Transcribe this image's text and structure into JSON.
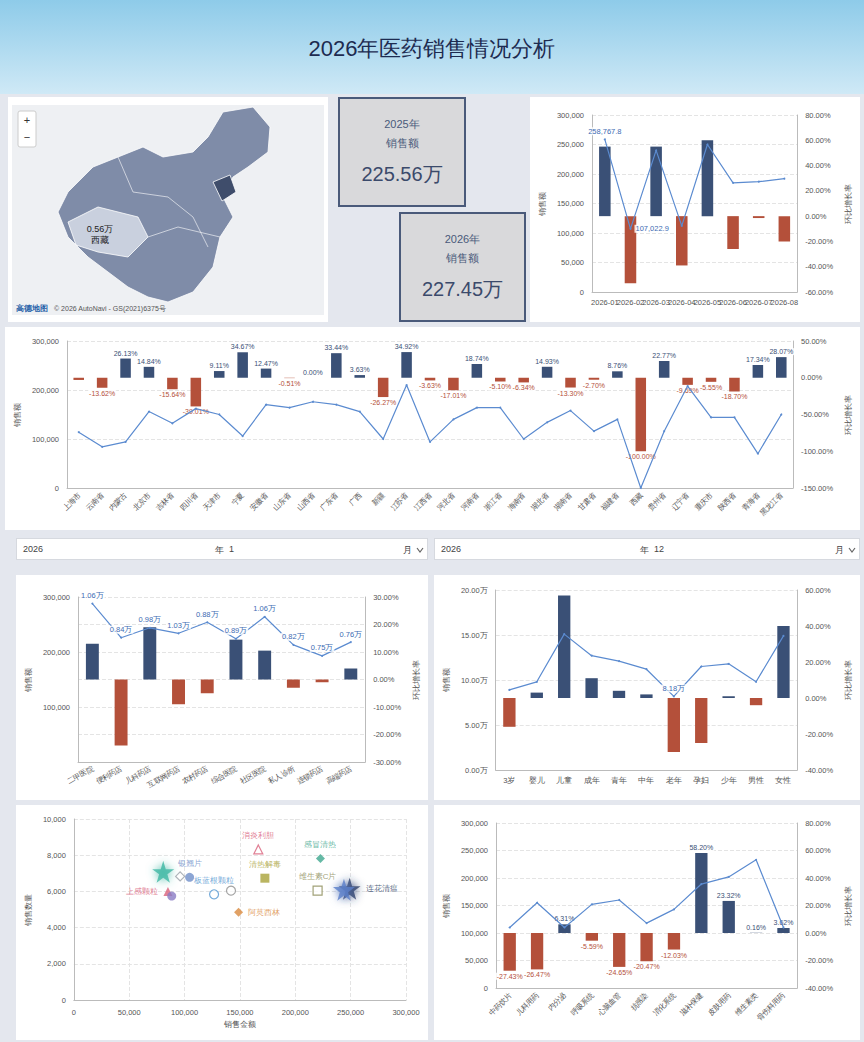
{
  "header": {
    "title": "2026年医药销售情况分析"
  },
  "map": {
    "labels": [
      {
        "value_label": "0.56万",
        "region": "西藏"
      }
    ],
    "controls": [
      "+",
      "−"
    ],
    "attribution": [
      "高德地图",
      "© 2026 AutoNavi - GS(2021)6375号"
    ]
  },
  "kpis": [
    {
      "year": "2025年",
      "label": "销售额",
      "value": "225.56万"
    },
    {
      "year": "2026年",
      "label": "销售额",
      "value": "227.45万"
    }
  ],
  "filters": [
    {
      "year": "2026",
      "year_unit": "年",
      "month": "1",
      "month_unit": "月"
    },
    {
      "year": "2026",
      "year_unit": "年",
      "month": "12",
      "month_unit": "月"
    }
  ],
  "chart_data": [
    {
      "type": "bar",
      "categories": [
        "2026-01",
        "2026-02",
        "2026-03",
        "2026-04",
        "2026-05",
        "2026-06",
        "2026-07",
        "2026-08"
      ],
      "ylabel": "销售额",
      "y2label": "环比增长率",
      "ylim": [
        0,
        300000
      ],
      "yticks": [
        0,
        {
          "value": 50000,
          "label": "50,000"
        },
        {
          "value": 100000,
          "label": "100,000"
        },
        {
          "value": 150000,
          "label": "150,000"
        },
        {
          "value": 200000,
          "label": "200,000"
        },
        {
          "value": 250000,
          "label": "250,000"
        },
        {
          "value": 300000,
          "label": "300,000"
        }
      ],
      "y2lim": [
        -60,
        80
      ],
      "y2ticks": [
        {
          "value": -60,
          "label": "-60.00%"
        },
        {
          "value": -40,
          "label": "-40.00%"
        },
        {
          "value": -20,
          "label": "-20.00%"
        },
        {
          "value": 0,
          "label": "0.00%"
        },
        {
          "value": 20,
          "label": "20.00%"
        },
        {
          "value": 40,
          "label": "40.00%"
        },
        {
          "value": 60,
          "label": "60.00%"
        },
        {
          "value": 80,
          "label": "80.00%"
        }
      ],
      "grid": true,
      "series": [
        {
          "name": "环比增长率",
          "type": "bar",
          "axis": "y2",
          "values": [
            55,
            -53,
            55,
            -39,
            60,
            -26,
            -1.5,
            -20
          ],
          "colors": [
            "#3a5076",
            "#b4503a",
            "#3a5076",
            "#b4503a",
            "#3a5076",
            "#b4503a",
            "#b4503a",
            "#b4503a"
          ]
        },
        {
          "name": "销售额",
          "type": "line",
          "color": "#5b8bd0",
          "data_labels": true,
          "values": [
            258767.8,
            107022.9,
            240000,
            112000,
            250000,
            185000,
            187000,
            192000
          ],
          "value_labels": [
            "258,767.8",
            "107,022.9",
            null,
            null,
            null,
            null,
            null,
            null
          ]
        }
      ]
    },
    {
      "type": "bar",
      "categories": [
        "上海市",
        "云南省",
        "内蒙古",
        "北京市",
        "吉林省",
        "四川省",
        "天津市",
        "宁夏",
        "安徽省",
        "山东省",
        "山西省",
        "广东省",
        "广西",
        "新疆",
        "江苏省",
        "江西省",
        "河北省",
        "河南省",
        "浙江省",
        "海南省",
        "湖北省",
        "湖南省",
        "甘肃省",
        "福建省",
        "西藏",
        "贵州省",
        "辽宁省",
        "重庆市",
        "陕西省",
        "青海省",
        "黑龙江省"
      ],
      "ylabel": "销售额",
      "y2label": "环比增长率",
      "ylim": [
        0,
        300000
      ],
      "yticks": [
        0,
        {
          "value": 100000,
          "label": "100,000"
        },
        {
          "value": 200000,
          "label": "200,000"
        },
        {
          "value": 300000,
          "label": "300,000"
        }
      ],
      "y2lim": [
        -150,
        50
      ],
      "y2ticks": [
        {
          "value": -150,
          "label": "-150.00%"
        },
        {
          "value": -100,
          "label": "-100.00%"
        },
        {
          "value": -50,
          "label": "-50.00%"
        },
        {
          "value": 0,
          "label": "0.00%"
        },
        {
          "value": 50,
          "label": "50.00%"
        }
      ],
      "grid": true,
      "series": [
        {
          "name": "环比增长率",
          "type": "bar",
          "axis": "y2",
          "data_labels": true,
          "values": [
            -3,
            -13.62,
            26.13,
            14.84,
            -15.64,
            -39.01,
            9.11,
            34.67,
            12.47,
            -0.51,
            0,
            33.44,
            3.63,
            -26.27,
            34.92,
            -3.63,
            -17.01,
            18.74,
            -5.1,
            -6.34,
            14.93,
            -13.3,
            -2.7,
            8.76,
            -100,
            22.77,
            -9.69,
            -5.55,
            -18.7,
            17.34,
            28.07
          ],
          "value_labels": [
            null,
            "-13.62%",
            "26.13%",
            "14.84%",
            "-15.64%",
            "-39.01%",
            "9.11%",
            "34.67%",
            "12.47%",
            "-0.51%",
            "0.00%",
            "33.44%",
            "3.63%",
            "-26.27%",
            "34.92%",
            "-3.63%",
            "-17.01%",
            "18.74%",
            "-5.10%",
            "-6.34%",
            "14.93%",
            "-13.30%",
            "-2.70%",
            "8.76%",
            "-100.00%",
            "22.77%",
            "-9.69%",
            "-5.55%",
            "-18.70%",
            "17.34%",
            "28.07%"
          ],
          "colors": [
            "#b4503a",
            "#b4503a",
            "#3a5076",
            "#3a5076",
            "#b4503a",
            "#b4503a",
            "#3a5076",
            "#3a5076",
            "#3a5076",
            "#b4503a",
            "#3a5076",
            "#3a5076",
            "#3a5076",
            "#b4503a",
            "#3a5076",
            "#b4503a",
            "#b4503a",
            "#3a5076",
            "#b4503a",
            "#b4503a",
            "#3a5076",
            "#b4503a",
            "#b4503a",
            "#3a5076",
            "#b4503a",
            "#3a5076",
            "#b4503a",
            "#b4503a",
            "#b4503a",
            "#3a5076",
            "#3a5076"
          ]
        },
        {
          "name": "销售额",
          "type": "line",
          "color": "#5b8bd0",
          "values": [
            114000,
            84000,
            94000,
            156000,
            132000,
            162000,
            150000,
            106000,
            170000,
            164000,
            176000,
            170000,
            156000,
            100000,
            210000,
            94000,
            140000,
            164000,
            164000,
            100000,
            134000,
            158000,
            116000,
            140000,
            0,
            116000,
            208000,
            144000,
            144000,
            70000,
            150000
          ]
        }
      ]
    },
    {
      "type": "bar",
      "categories": [
        "二甲医院",
        "便利药店",
        "儿科药店",
        "互联网药店",
        "农村药店",
        "综合医院",
        "社区医院",
        "私人诊所",
        "连锁药店",
        "高端药店"
      ],
      "ylabel": "销售额",
      "y2label": "环比增长率",
      "ylim": [
        0,
        300000
      ],
      "yticks": [
        {
          "value": 100000,
          "label": "100,000"
        },
        {
          "value": 200000,
          "label": "200,000"
        },
        {
          "value": 300000,
          "label": "300,000"
        }
      ],
      "y2lim": [
        -30,
        30
      ],
      "y2ticks": [
        {
          "value": -30,
          "label": "-30.00%"
        },
        {
          "value": -20,
          "label": "-20.00%"
        },
        {
          "value": -10,
          "label": "-10.00%"
        },
        {
          "value": 0,
          "label": "0.00%"
        },
        {
          "value": 10,
          "label": "10.00%"
        },
        {
          "value": 20,
          "label": "20.00%"
        },
        {
          "value": 30,
          "label": "30.00%"
        }
      ],
      "grid": true,
      "annotations": [
        {
          "category": "二甲医院",
          "text": "1.06万"
        },
        {
          "category": "便利药店",
          "text": "0.84万"
        },
        {
          "category": "儿科药店",
          "text": "0.98万"
        },
        {
          "category": "互联网药店",
          "text": "1.03万"
        },
        {
          "category": "农村药店",
          "text": "0.88万"
        },
        {
          "category": "综合医院",
          "text": "0.89万"
        },
        {
          "category": "社区医院",
          "text": "1.06万"
        },
        {
          "category": "私人诊所",
          "text": "0.82万"
        },
        {
          "category": "连锁药店",
          "text": "0.75万"
        },
        {
          "category": "高端药店",
          "text": "0.76万"
        }
      ],
      "series": [
        {
          "name": "环比增长率",
          "type": "bar",
          "axis": "y2",
          "values": [
            13,
            -24,
            19,
            -9,
            -5,
            14.5,
            10.5,
            -3,
            -1,
            4
          ],
          "colors": [
            "#3a5076",
            "#b4503a",
            "#3a5076",
            "#b4503a",
            "#b4503a",
            "#3a5076",
            "#3a5076",
            "#b4503a",
            "#b4503a",
            "#3a5076"
          ]
        },
        {
          "name": "销售额",
          "type": "line",
          "color": "#5b8bd0",
          "values": [
            288000,
            226000,
            244000,
            234000,
            254000,
            224000,
            264000,
            213000,
            193000,
            218000
          ]
        }
      ]
    },
    {
      "type": "bar",
      "categories": [
        "3岁",
        "婴儿",
        "儿童",
        "成年",
        "青年",
        "中年",
        "老年",
        "孕妇",
        "少年",
        "男性",
        "女性"
      ],
      "ylabel": "销售额",
      "y2label": "环比增长率",
      "ylim": [
        0,
        200000
      ],
      "yticks": [
        {
          "value": 0,
          "label": "0.00万"
        },
        {
          "value": 50000,
          "label": "5.00万"
        },
        {
          "value": 100000,
          "label": "10.00万"
        },
        {
          "value": 150000,
          "label": "15.00万"
        },
        {
          "value": 200000,
          "label": "20.00万"
        }
      ],
      "y2lim": [
        -40,
        60
      ],
      "y2ticks": [
        {
          "value": -40,
          "label": "-40.00%"
        },
        {
          "value": -20,
          "label": "-20.00%"
        },
        {
          "value": 0,
          "label": "0.00%"
        },
        {
          "value": 20,
          "label": "20.00%"
        },
        {
          "value": 40,
          "label": "40.00%"
        },
        {
          "value": 60,
          "label": "60.00%"
        }
      ],
      "grid": true,
      "series": [
        {
          "name": "环比增长率",
          "type": "bar",
          "axis": "y2",
          "values": [
            -16,
            3,
            57,
            11,
            4,
            2,
            -30,
            -25,
            1,
            -4,
            40
          ],
          "colors": [
            "#b4503a",
            "#3a5076",
            "#3a5076",
            "#3a5076",
            "#3a5076",
            "#3a5076",
            "#b4503a",
            "#b4503a",
            "#3a5076",
            "#b4503a",
            "#3a5076"
          ]
        },
        {
          "name": "销售额",
          "type": "line",
          "color": "#5b8bd0",
          "data_labels": true,
          "values": [
            89000,
            98000,
            151000,
            127000,
            121000,
            112000,
            81800,
            115000,
            118000,
            98000,
            149000
          ],
          "value_labels": [
            null,
            null,
            null,
            null,
            null,
            null,
            "8.18万",
            null,
            null,
            null,
            null
          ]
        }
      ]
    },
    {
      "type": "scatter",
      "xlabel": "销售金额",
      "ylabel": "销售数量",
      "xlim": [
        0,
        300000
      ],
      "xticks": [
        0,
        {
          "value": 50000,
          "label": "50,000"
        },
        {
          "value": 100000,
          "label": "100,000"
        },
        {
          "value": 150000,
          "label": "150,000"
        },
        {
          "value": 200000,
          "label": "200,000"
        },
        {
          "value": 250000,
          "label": "250,000"
        },
        {
          "value": 300000,
          "label": "300,000"
        }
      ],
      "ylim": [
        0,
        10000
      ],
      "yticks": [
        0,
        {
          "value": 2000,
          "label": "2,000"
        },
        {
          "value": 4000,
          "label": "4,000"
        },
        {
          "value": 6000,
          "label": "6,000"
        },
        {
          "value": 8000,
          "label": "8,000"
        },
        {
          "value": 10000,
          "label": "10,000"
        }
      ],
      "grid": true,
      "series": [
        {
          "name": null,
          "marker": "star",
          "color": "#3fb8a4",
          "x": [
            80750
          ],
          "values": [
            7080
          ]
        },
        {
          "name": "银翘片",
          "marker": "circle",
          "color": "#6f8fc9",
          "x": [
            104550
          ],
          "values": [
            6780
          ]
        },
        {
          "name": null,
          "marker": "diamond-open",
          "color": "#9aa0a8",
          "x": [
            96000
          ],
          "values": [
            6830
          ]
        },
        {
          "name": "上感颗粒",
          "marker": "triangle",
          "color": "#d9607a",
          "x": [
            85000
          ],
          "values": [
            5990
          ]
        },
        {
          "name": null,
          "marker": "circle",
          "color": "#8a7cc4",
          "x": [
            88400
          ],
          "values": [
            5740
          ]
        },
        {
          "name": "板蓝根颗粒",
          "marker": "circle-open",
          "color": "#4f93cf",
          "x": [
            126650
          ],
          "values": [
            5840
          ]
        },
        {
          "name": null,
          "marker": "circle-open",
          "color": "#8c8c8c",
          "x": [
            141950
          ],
          "values": [
            6040
          ]
        },
        {
          "name": "阿莫西林",
          "marker": "diamond",
          "color": "#d98a3e",
          "x": [
            148750
          ],
          "values": [
            4850
          ]
        },
        {
          "name": "清热解毒",
          "marker": "square",
          "color": "#a9a23a",
          "x": [
            172550
          ],
          "values": [
            6730
          ]
        },
        {
          "name": "消炎利胆",
          "marker": "triangle-open",
          "color": "#d9607a",
          "x": [
            166600
          ],
          "values": [
            8320
          ]
        },
        {
          "name": "感冒清热",
          "marker": "diamond",
          "color": "#3fa88e",
          "x": [
            222700
          ],
          "values": [
            7820
          ]
        },
        {
          "name": "维生素C片",
          "marker": "square-open",
          "color": "#8a8a55",
          "x": [
            220150
          ],
          "values": [
            6040
          ]
        },
        {
          "name": "连花清瘟",
          "marker": "star",
          "color": "#2e3f66",
          "x": [
            249050
          ],
          "values": [
            6140
          ]
        },
        {
          "name": null,
          "marker": "star",
          "color": "#5b7fc9",
          "x": [
            243950
          ],
          "values": [
            6090
          ]
        }
      ]
    },
    {
      "type": "bar",
      "categories": [
        "中药饮片",
        "儿科用药",
        "内分泌",
        "呼吸系统",
        "心脑血管",
        "抗感染",
        "消化系统",
        "滋补保健",
        "皮肤用药",
        "维生素类",
        "骨伤科用药"
      ],
      "ylabel": "销售额",
      "y2label": "环比增长率",
      "ylim": [
        0,
        300000
      ],
      "yticks": [
        0,
        {
          "value": 50000,
          "label": "50,000"
        },
        {
          "value": 100000,
          "label": "100,000"
        },
        {
          "value": 150000,
          "label": "150,000"
        },
        {
          "value": 200000,
          "label": "200,000"
        },
        {
          "value": 250000,
          "label": "250,000"
        },
        {
          "value": 300000,
          "label": "300,000"
        }
      ],
      "y2lim": [
        -40,
        80
      ],
      "y2ticks": [
        {
          "value": -40,
          "label": "-40.00%"
        },
        {
          "value": -20,
          "label": "-20.00%"
        },
        {
          "value": 0,
          "label": "0.00%"
        },
        {
          "value": 20,
          "label": "20.00%"
        },
        {
          "value": 40,
          "label": "40.00%"
        },
        {
          "value": 60,
          "label": "60.00%"
        },
        {
          "value": 80,
          "label": "80.00%"
        }
      ],
      "grid": true,
      "series": [
        {
          "name": "环比增长率",
          "type": "bar",
          "axis": "y2",
          "data_labels": true,
          "values": [
            -27.43,
            -26.47,
            6.31,
            -5.59,
            -24.65,
            -20.47,
            -12.03,
            58.2,
            23.32,
            0.16,
            3.62
          ],
          "value_labels": [
            "-27.43%",
            "-26.47%",
            "6.31%",
            "-5.59%",
            "-24.65%",
            "-20.47%",
            "-12.03%",
            "58.20%",
            "23.32%",
            "0.16%",
            "3.62%"
          ],
          "colors": [
            "#b4503a",
            "#b4503a",
            "#3a5076",
            "#b4503a",
            "#b4503a",
            "#b4503a",
            "#b4503a",
            "#3a5076",
            "#3a5076",
            "#3a5076",
            "#3a5076"
          ]
        },
        {
          "name": "销售额",
          "type": "line",
          "color": "#5b8bd0",
          "values": [
            110000,
            155000,
            110000,
            152000,
            160000,
            118000,
            143000,
            189000,
            202000,
            233000,
            110000
          ]
        }
      ]
    }
  ]
}
